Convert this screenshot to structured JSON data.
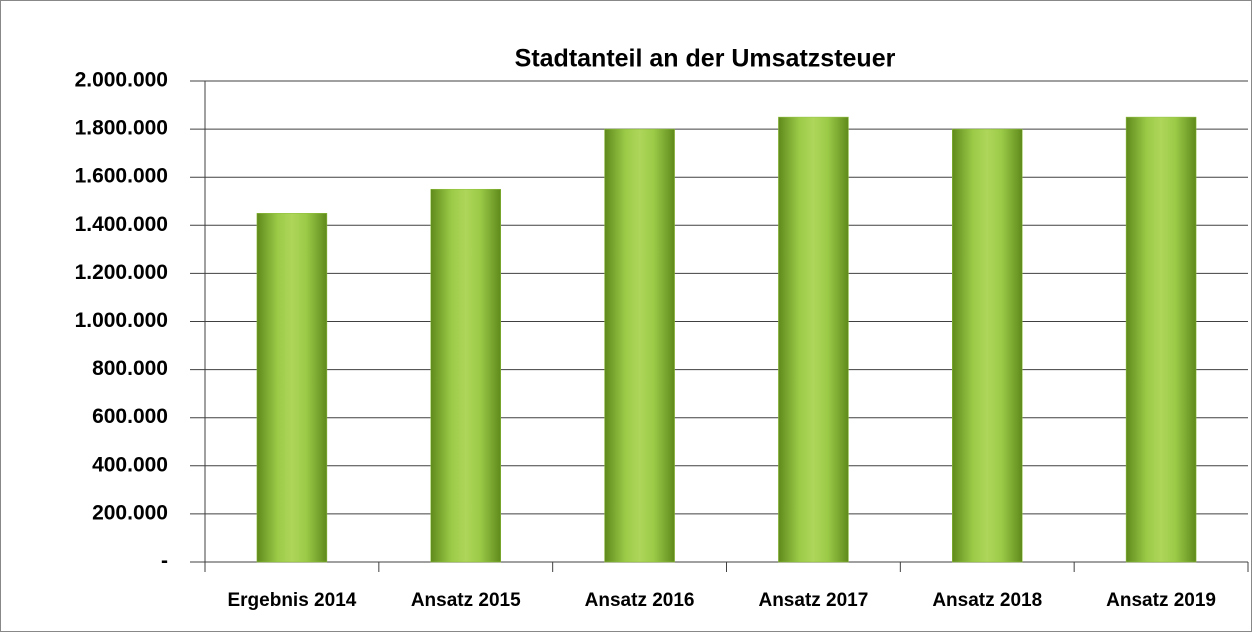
{
  "chart_data": {
    "type": "bar",
    "title": "Stadtanteil an der Umsatzsteuer",
    "categories": [
      "Ergebnis 2014",
      "Ansatz 2015",
      "Ansatz 2016",
      "Ansatz 2017",
      "Ansatz 2018",
      "Ansatz 2019"
    ],
    "values": [
      1450000,
      1550000,
      1800000,
      1850000,
      1800000,
      1850000
    ],
    "color": "#8fbf3a",
    "ylim": [
      0,
      2000000
    ],
    "yticks": [
      {
        "value": 0,
        "label": "-"
      },
      {
        "value": 200000,
        "label": "200.000"
      },
      {
        "value": 400000,
        "label": "400.000"
      },
      {
        "value": 600000,
        "label": "600.000"
      },
      {
        "value": 800000,
        "label": "800.000"
      },
      {
        "value": 1000000,
        "label": "1.000.000"
      },
      {
        "value": 1200000,
        "label": "1.200.000"
      },
      {
        "value": 1400000,
        "label": "1.400.000"
      },
      {
        "value": 1600000,
        "label": "1.600.000"
      },
      {
        "value": 1800000,
        "label": "1.800.000"
      },
      {
        "value": 2000000,
        "label": "2.000.000"
      }
    ],
    "grid": true
  }
}
